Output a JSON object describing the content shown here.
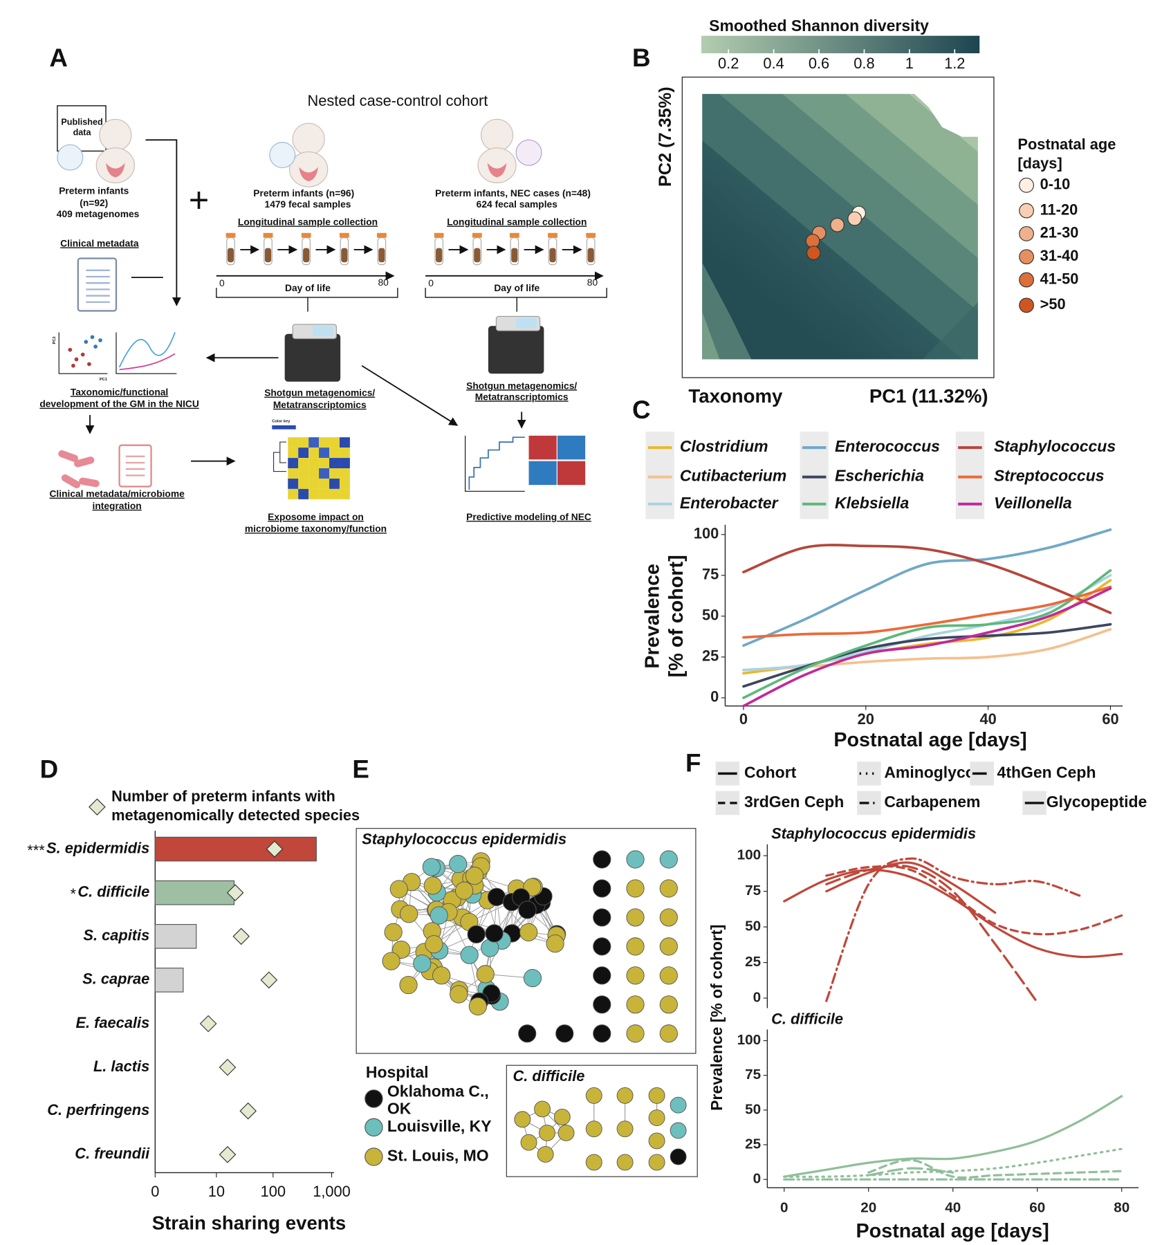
{
  "panel_a": {
    "label": "A",
    "published_box": [
      "Published",
      "data"
    ],
    "published_cohort": [
      "Preterm infants",
      "(n=92)",
      "409 metagenomes"
    ],
    "clinical_metadata": "Clinical metadata",
    "plus": "+",
    "nested_title": "Nested case-control cohort",
    "cohort_controls": {
      "title": [
        "Preterm infants (n=96)",
        "1479 fecal samples"
      ],
      "collection": "Longitudinal sample collection",
      "axis_start": "0",
      "axis_end": "80",
      "axis_label": "Day of life"
    },
    "cohort_nec": {
      "title": [
        "Preterm infants, NEC cases (n=48)",
        "624 fecal samples"
      ],
      "collection": "Longitudinal sample collection",
      "axis_start": "0",
      "axis_end": "80",
      "axis_label": "Day of life"
    },
    "taxonomic": [
      "Taxonomic/functional",
      "development of the GM in the NICU"
    ],
    "sequencing": [
      "Shotgun metagenomics/",
      "Metatranscriptomics"
    ],
    "sequencing_nec": [
      "Shotgun metagenomics/",
      "Metatranscriptomics"
    ],
    "integration": [
      "Clinical metadata/microbiome",
      "integration"
    ],
    "exposome": [
      "Exposome impact on",
      "microbiome taxonomy/function"
    ],
    "predictive": "Predictive modeling of NEC",
    "pca_axes": [
      "PC1",
      "PC2"
    ],
    "heatmap_key": "Color key"
  },
  "panel_e": {
    "label": "E",
    "network_title": "Staphylococcus epidermidis",
    "legend_title": "Hospital",
    "hospitals": [
      {
        "name": [
          "Oklahoma C.,",
          "OK"
        ],
        "color": "#111111"
      },
      {
        "name": [
          "Louisville, KY"
        ],
        "color": "#6cbfbc"
      },
      {
        "name": [
          "St. Louis, MO"
        ],
        "color": "#c9b43a"
      }
    ],
    "inset_title": "C. difficile"
  },
  "chart_data": [
    {
      "type": "scatter",
      "label": "B",
      "title": "Smoothed Shannon diversity",
      "colorbar_ticks": [
        0.2,
        0.4,
        0.6,
        0.8,
        1,
        1.2
      ],
      "clim": [
        0.08,
        1.31
      ],
      "colorbar_colors": [
        "#b3cdb0",
        "#1d4550"
      ],
      "subtitle": "Taxonomy",
      "xlabel": "PC1 (11.32%)",
      "ylabel": "PC2 (7.35%)",
      "legend_title": [
        "Postnatal age",
        "[days]"
      ],
      "categories": [
        "0-10",
        "11-20",
        "21-30",
        "31-40",
        "41-50",
        ">50"
      ],
      "colors": [
        "#fdf0e2",
        "#f8cfb2",
        "#f0b08c",
        "#e69062",
        "#db7038",
        "#d0561f"
      ],
      "x": [
        0.568,
        0.553,
        0.49,
        0.424,
        0.401,
        0.404
      ],
      "y": [
        0.551,
        0.53,
        0.506,
        0.476,
        0.446,
        0.401
      ],
      "xlim": [
        0,
        1
      ],
      "ylim": [
        0,
        1
      ]
    },
    {
      "type": "line",
      "label": "C",
      "xlabel": "Postnatal age [days]",
      "ylabel": [
        "Prevalence",
        "[% of cohort]"
      ],
      "x": [
        0,
        10,
        20,
        30,
        40,
        50,
        60
      ],
      "xlim": [
        -3,
        62
      ],
      "ylim": [
        -5,
        106
      ],
      "xticks": [
        0,
        20,
        40,
        60
      ],
      "yticks": [
        0,
        25,
        50,
        75,
        100
      ],
      "series": [
        {
          "name": "Clostridium",
          "color": "#e8b830",
          "values": [
            15,
            20,
            27,
            33,
            37,
            48,
            72
          ]
        },
        {
          "name": "Cutibacterium",
          "color": "#f4c08e",
          "values": [
            17,
            19,
            22,
            24,
            25,
            30,
            42
          ]
        },
        {
          "name": "Enterobacter",
          "color": "#a8d4e0",
          "values": [
            17,
            20,
            28,
            38,
            45,
            55,
            75
          ]
        },
        {
          "name": "Enterococcus",
          "color": "#6fa8c8",
          "values": [
            32,
            48,
            66,
            82,
            85,
            92,
            103
          ]
        },
        {
          "name": "Escherichia",
          "color": "#3c4660",
          "values": [
            7,
            19,
            30,
            36,
            38,
            40,
            45
          ]
        },
        {
          "name": "Klebsiella",
          "color": "#5db87a",
          "values": [
            0,
            18,
            32,
            43,
            45,
            52,
            78
          ]
        },
        {
          "name": "Staphylococcus",
          "color": "#b5463a",
          "values": [
            77,
            92,
            93,
            91,
            82,
            68,
            52
          ]
        },
        {
          "name": "Streptococcus",
          "color": "#ea6a3a",
          "values": [
            37,
            39,
            40,
            45,
            51,
            57,
            68
          ]
        },
        {
          "name": "Veillonella",
          "color": "#c02a9a",
          "values": [
            -5,
            14,
            27,
            32,
            40,
            50,
            67
          ]
        }
      ]
    },
    {
      "type": "bar",
      "orientation": "horizontal",
      "label": "D",
      "legend": [
        "Number of preterm infants with",
        "metagenomically detected species"
      ],
      "categories": [
        "S. epidermidis",
        "C. difficile",
        "S. capitis",
        "S. caprae",
        "E. faecalis",
        "L. lactis",
        "C. perfringens",
        "C. freundii"
      ],
      "significance": [
        "***",
        "*",
        null,
        null,
        null,
        null,
        null,
        null
      ],
      "values": [
        549,
        21,
        4,
        2,
        0,
        0,
        0,
        0
      ],
      "colors": [
        "#c0473a",
        "#9fbfa3",
        "#d3d3d3",
        "#d3d3d3",
        "#d3d3d3",
        "#d3d3d3",
        "#d3d3d3",
        "#d3d3d3"
      ],
      "infants": [
        106,
        22,
        28,
        85,
        7,
        16,
        37,
        16
      ],
      "marker_color": "#e4ead0",
      "xscale": "log1p",
      "xlim": [
        0,
        1000
      ],
      "xticks": [
        0,
        10,
        100,
        {
          "value": 1000,
          "label": "1,000"
        }
      ],
      "xlabel": "Strain sharing events"
    },
    {
      "type": "line",
      "label": "F",
      "title": "Staphylococcus epidermidis",
      "ylabel": "Prevalence [% of cohort]",
      "legend": [
        {
          "name": "Cohort",
          "dash": "solid"
        },
        {
          "name": "Aminoglyco.",
          "dash": "dotted"
        },
        {
          "name": "4thGen Ceph",
          "dash": "longdash"
        },
        {
          "name": "3rdGen Ceph",
          "dash": "dashed"
        },
        {
          "name": "Carbapenem",
          "dash": "dashdot"
        },
        {
          "name": "Glycopeptide",
          "dash": "solid"
        }
      ],
      "color": "#c0473a",
      "x": [
        0,
        10,
        20,
        30,
        40,
        50,
        60,
        70,
        80
      ],
      "xlim": [
        -4,
        84
      ],
      "ylim": [
        -7,
        108
      ],
      "yticks": [
        0,
        25,
        50,
        75,
        100
      ],
      "series": [
        {
          "dash": "solid",
          "values": [
            68,
            83,
            90,
            85,
            70,
            50,
            35,
            29,
            31
          ]
        },
        {
          "dash": "dashed",
          "values": [
            null,
            86,
            92,
            90,
            72,
            52,
            45,
            48,
            58
          ]
        },
        {
          "dash": "dashdot",
          "values": [
            null,
            -2,
            80,
            98,
            85,
            80,
            82,
            72,
            null
          ]
        },
        {
          "dash": "longdash",
          "values": [
            null,
            80,
            90,
            92,
            75,
            38,
            -3,
            null,
            null
          ]
        },
        {
          "dash": "solid",
          "values": [
            null,
            75,
            88,
            95,
            80,
            60,
            null,
            null,
            null
          ]
        }
      ]
    },
    {
      "type": "line",
      "title": "C. difficile",
      "xlabel": "Postnatal age [days]",
      "color": "#8fbf9a",
      "x": [
        0,
        10,
        20,
        30,
        40,
        50,
        60,
        70,
        80
      ],
      "xlim": [
        -4,
        84
      ],
      "ylim": [
        -6,
        108
      ],
      "xticks": [
        0,
        20,
        40,
        60,
        80
      ],
      "yticks": [
        0,
        25,
        50,
        75,
        100
      ],
      "series": [
        {
          "dash": "solid",
          "values": [
            2,
            7,
            12,
            15,
            15,
            20,
            28,
            42,
            60
          ]
        },
        {
          "dash": "dotted",
          "values": [
            2,
            2,
            3,
            5,
            6,
            8,
            12,
            17,
            22
          ]
        },
        {
          "dash": "dashdot",
          "values": [
            0,
            0,
            0,
            0,
            0,
            0,
            0,
            0,
            0
          ]
        },
        {
          "dash": "dashed",
          "values": [
            null,
            null,
            5,
            14,
            2,
            3,
            4,
            5,
            6
          ]
        },
        {
          "dash": "longdash",
          "values": [
            null,
            null,
            3,
            8,
            5,
            null,
            null,
            null,
            null
          ]
        }
      ]
    }
  ]
}
